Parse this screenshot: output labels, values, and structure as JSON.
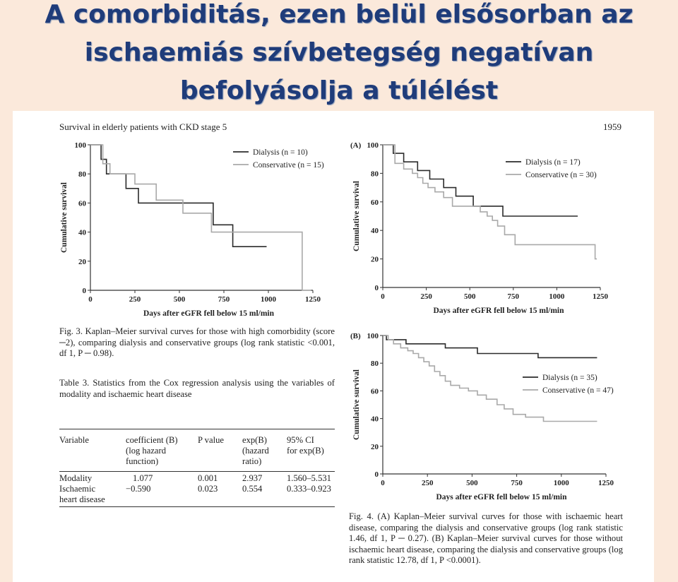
{
  "slide_title": "A comorbiditás, ezen belül elsősorban az ischaemiás szívbetegség negatívan befolyásolja a túlélést",
  "page_header": "Survival in elderly patients with CKD stage 5",
  "page_number": "1959",
  "fig3_caption": "Fig. 3. Kaplan–Meier survival curves for those with high comorbidity (score ─2), comparing dialysis and conservative groups (log rank statistic <0.001, df 1, P ─ 0.98).",
  "fig4_caption": "Fig. 4. (A) Kaplan–Meier survival curves for those with ischaemic heart disease, comparing the dialysis and conservative groups (log rank statistic 1.46, df 1, P ─ 0.27). (B) Kaplan–Meier survival curves for those without ischaemic heart disease, comparing the dialysis and conservative groups (log rank statistic 12.78, df 1, P <0.0001).",
  "table": {
    "title": "Table 3. Statistics from the Cox regression analysis using the variables of modality and ischaemic heart disease",
    "headers": [
      "Variable",
      "coefficient (B)\n(log hazard\nfunction)",
      "P value",
      "exp(B)\n(hazard\nratio)",
      "95% CI\nfor exp(B)"
    ],
    "rows": [
      [
        "Modality",
        "1.077",
        "0.001",
        "2.937",
        "1.560–5.531"
      ],
      [
        "Ischaemic\nheart disease",
        "−0.590",
        "0.023",
        "0.554",
        "0.333–0.923"
      ]
    ]
  },
  "colors": {
    "dialysis": "#2b2b2b",
    "conservative": "#a9a9a9",
    "title": "#1f3c7a",
    "background": "#fbe9db"
  },
  "chart_data": [
    {
      "type": "line",
      "panel_label": "",
      "xlabel": "Days after eGFR fell below 15 ml/min",
      "ylabel": "Cumulative survival",
      "xlim": [
        0,
        1250
      ],
      "ylim": [
        0,
        100
      ],
      "xticks": [
        0,
        250,
        500,
        750,
        1000,
        1250
      ],
      "yticks": [
        0,
        20,
        40,
        60,
        80,
        100
      ],
      "series": [
        {
          "name": "Dialysis (n = 10)",
          "key": "dialysis",
          "x": [
            0,
            60,
            60,
            90,
            90,
            200,
            200,
            270,
            270,
            690,
            690,
            800,
            800,
            990
          ],
          "y": [
            100,
            100,
            90,
            90,
            80,
            80,
            70,
            70,
            60,
            60,
            45,
            45,
            30,
            30
          ]
        },
        {
          "name": "Conservative (n = 15)",
          "key": "conservative",
          "x": [
            0,
            70,
            70,
            110,
            110,
            250,
            250,
            370,
            370,
            520,
            520,
            680,
            680,
            1190,
            1190,
            1240
          ],
          "y": [
            100,
            100,
            87,
            87,
            80,
            80,
            73,
            73,
            62,
            62,
            53,
            53,
            40,
            40,
            0,
            0
          ]
        }
      ]
    },
    {
      "type": "line",
      "panel_label": "(A)",
      "xlabel": "Days after eGFR fell below 15 ml/min",
      "ylabel": "Cumulative survival",
      "xlim": [
        0,
        1250
      ],
      "ylim": [
        0,
        100
      ],
      "xticks": [
        0,
        250,
        500,
        750,
        1000,
        1250
      ],
      "yticks": [
        0,
        20,
        40,
        60,
        80,
        100
      ],
      "series": [
        {
          "name": "Dialysis (n = 17)",
          "key": "dialysis",
          "x": [
            0,
            60,
            60,
            120,
            120,
            200,
            200,
            270,
            270,
            350,
            350,
            420,
            420,
            520,
            520,
            690,
            690,
            1120
          ],
          "y": [
            100,
            100,
            94,
            94,
            88,
            88,
            82,
            82,
            76,
            76,
            70,
            70,
            64,
            64,
            57,
            57,
            50,
            50
          ]
        },
        {
          "name": "Conservative (n = 30)",
          "key": "conservative",
          "x": [
            0,
            70,
            70,
            120,
            120,
            170,
            170,
            200,
            200,
            230,
            230,
            260,
            260,
            300,
            300,
            350,
            350,
            400,
            400,
            480,
            480,
            560,
            560,
            600,
            600,
            630,
            630,
            660,
            660,
            700,
            700,
            760,
            760,
            1220,
            1220,
            1230
          ],
          "y": [
            100,
            100,
            87,
            87,
            83,
            83,
            80,
            80,
            77,
            77,
            73,
            73,
            70,
            70,
            67,
            67,
            63,
            63,
            57,
            57,
            57,
            57,
            53,
            53,
            50,
            50,
            47,
            47,
            43,
            43,
            37,
            37,
            30,
            30,
            20,
            20
          ]
        }
      ]
    },
    {
      "type": "line",
      "panel_label": "(B)",
      "xlabel": "Days after eGFR fell below 15 ml/min",
      "ylabel": "Cumulative survival",
      "xlim": [
        0,
        1250
      ],
      "ylim": [
        0,
        100
      ],
      "xticks": [
        0,
        250,
        500,
        750,
        1000,
        1250
      ],
      "yticks": [
        0,
        20,
        40,
        60,
        80,
        100
      ],
      "series": [
        {
          "name": "Dialysis (n = 35)",
          "key": "dialysis",
          "x": [
            0,
            20,
            20,
            130,
            130,
            350,
            350,
            530,
            530,
            870,
            870,
            1200
          ],
          "y": [
            100,
            100,
            97,
            97,
            94,
            94,
            91,
            91,
            87,
            87,
            84,
            84
          ]
        },
        {
          "name": "Conservative (n = 47)",
          "key": "conservative",
          "x": [
            0,
            30,
            30,
            60,
            60,
            100,
            100,
            140,
            140,
            170,
            170,
            200,
            200,
            230,
            230,
            260,
            260,
            290,
            290,
            320,
            320,
            350,
            350,
            380,
            380,
            430,
            430,
            480,
            480,
            530,
            530,
            580,
            580,
            640,
            640,
            680,
            680,
            730,
            730,
            800,
            800,
            900,
            900,
            1030,
            1030,
            1200
          ],
          "y": [
            100,
            100,
            97,
            97,
            94,
            94,
            91,
            91,
            89,
            89,
            87,
            87,
            84,
            84,
            81,
            81,
            78,
            78,
            74,
            74,
            71,
            71,
            67,
            67,
            64,
            64,
            62,
            62,
            60,
            60,
            57,
            57,
            54,
            54,
            50,
            50,
            47,
            47,
            43,
            43,
            41,
            41,
            38,
            38,
            38,
            38
          ]
        }
      ]
    }
  ]
}
